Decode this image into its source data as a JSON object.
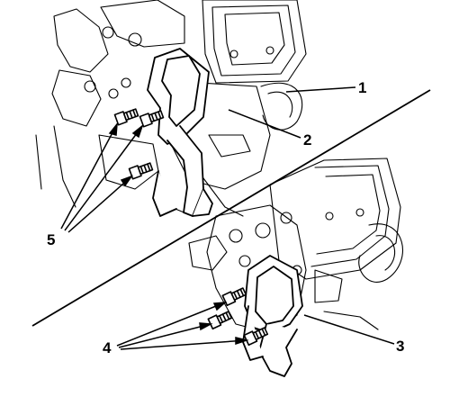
{
  "diagram": {
    "callouts": [
      {
        "id": "1",
        "label": "1"
      },
      {
        "id": "2",
        "label": "2"
      },
      {
        "id": "3",
        "label": "3"
      },
      {
        "id": "4",
        "label": "4"
      },
      {
        "id": "5",
        "label": "5"
      }
    ],
    "colors": {
      "ink": "#000000",
      "hatch": "#888888",
      "background": "#ffffff"
    }
  }
}
